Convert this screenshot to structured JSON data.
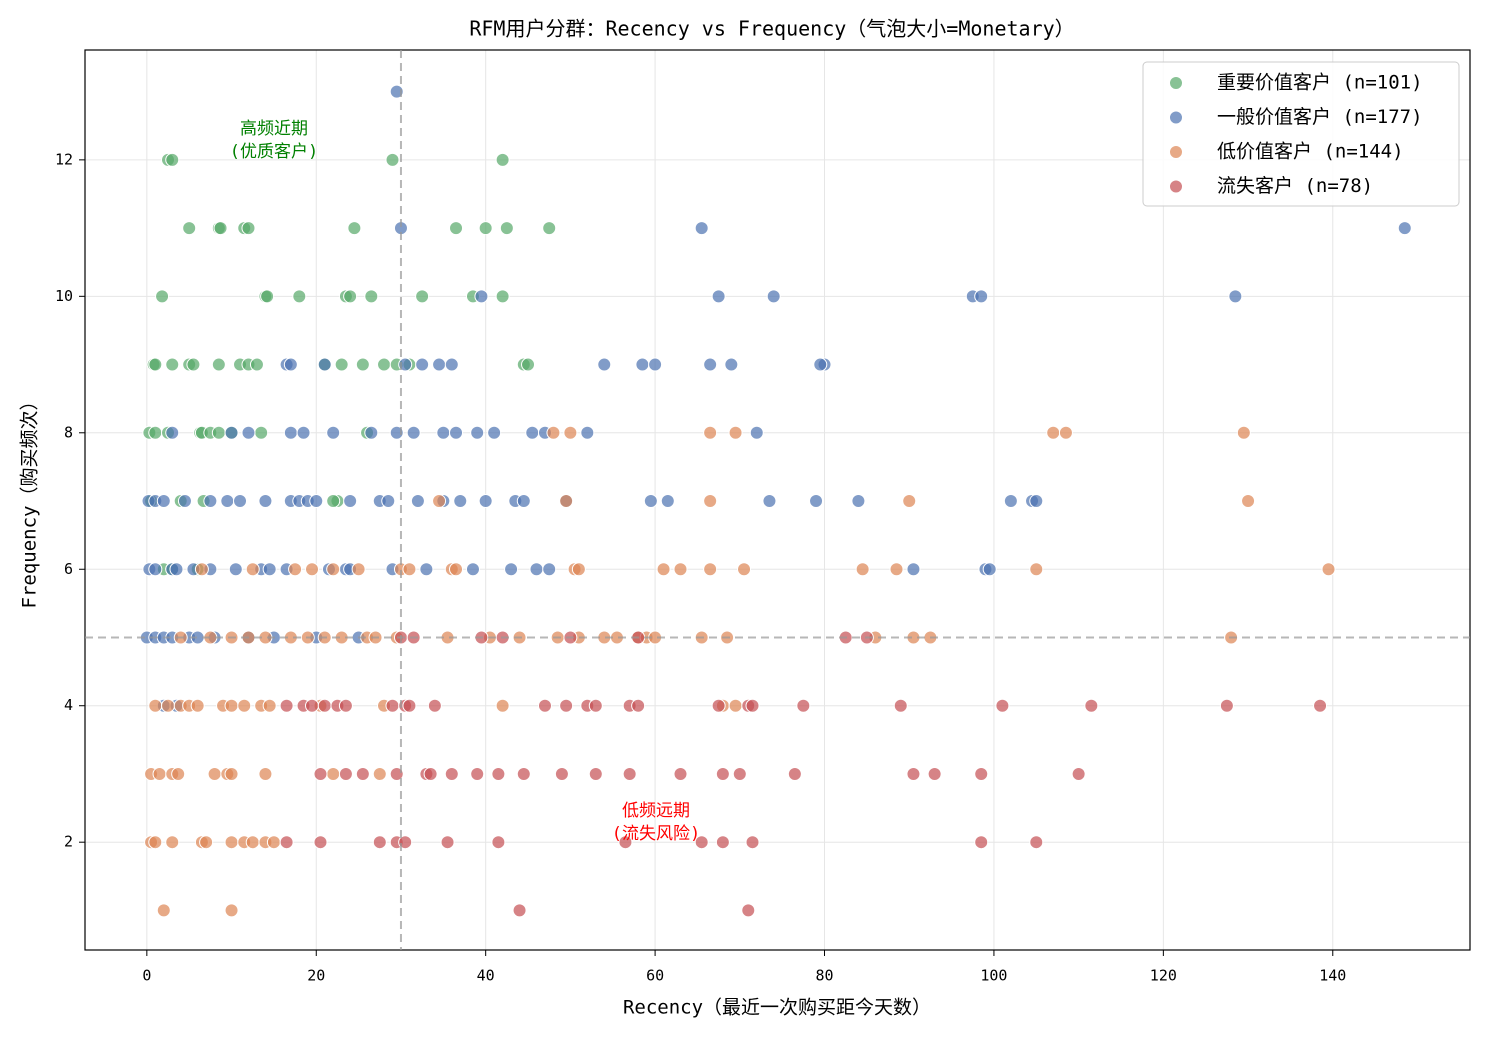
{
  "chart_data": {
    "type": "scatter",
    "title": "RFM用户分群：Recency vs Frequency（气泡大小=Monetary）",
    "x_label": "Recency（最近一次购买距今天数）",
    "y_label": "Frequency（购买频次）",
    "xlim": [
      -7.3,
      156.2
    ],
    "ylim": [
      0.42,
      13.61
    ],
    "xticks": [
      0,
      20,
      40,
      60,
      80,
      100,
      120,
      140
    ],
    "yticks": [
      2,
      4,
      6,
      8,
      10,
      12
    ],
    "grid": true,
    "legend": "upper right",
    "ref_x": 30,
    "ref_y": 5,
    "annotations": [
      {
        "lines": [
          "高频近期",
          "(优质客户)"
        ],
        "color": "#008000"
      },
      {
        "lines": [
          "低频远期",
          "(流失风险)"
        ],
        "color": "#ff0000"
      }
    ],
    "series": [
      {
        "name": "重要价值客户 (n=101)",
        "color": "#55a868",
        "x": [
          2.5,
          3,
          29,
          42,
          5,
          8.5,
          8.7,
          11.5,
          12,
          24.5,
          36.5,
          40,
          42.5,
          47.5,
          1.8,
          14,
          14.2,
          18,
          23.5,
          24,
          26.5,
          32.5,
          38.5,
          42,
          0.8,
          1,
          3,
          5,
          5.5,
          8.5,
          11,
          12,
          13,
          21,
          23,
          25.5,
          28,
          29.5,
          31,
          44.5,
          45,
          0.3,
          1,
          2.5,
          6.3,
          6.5,
          7.5,
          8.5,
          10,
          13.5,
          26,
          0.5,
          4,
          6.7,
          22.5,
          22,
          2,
          3,
          6
        ],
        "values": [
          12,
          12,
          12,
          12,
          11,
          11,
          11,
          11,
          11,
          11,
          11,
          11,
          11,
          11,
          10,
          10,
          10,
          10,
          10,
          10,
          10,
          10,
          10,
          10,
          9,
          9,
          9,
          9,
          9,
          9,
          9,
          9,
          9,
          9,
          9,
          9,
          9,
          9,
          9,
          9,
          9,
          8,
          8,
          8,
          8,
          8,
          8,
          8,
          8,
          8,
          8,
          7,
          7,
          7,
          7,
          7,
          6,
          6,
          6
        ]
      },
      {
        "name": "一般价值客户 (n=177)",
        "color": "#4c72b0",
        "x": [
          29.5,
          30,
          65.5,
          148.5,
          39.5,
          67.5,
          74,
          97.5,
          98.5,
          128.5,
          16.5,
          17,
          21,
          30.5,
          32.5,
          34.5,
          36,
          54,
          58.5,
          60,
          66.5,
          69,
          80,
          79.5,
          3,
          12,
          17,
          18.5,
          22,
          26.5,
          29.5,
          31.5,
          35,
          36.5,
          39,
          41,
          45.5,
          47,
          52,
          72,
          10,
          0.2,
          1,
          2,
          4.5,
          7.5,
          9.5,
          11,
          14,
          17,
          18,
          19,
          20,
          24,
          27.5,
          28.5,
          32,
          35,
          37,
          40,
          43.5,
          44.5,
          49.5,
          59.5,
          61.5,
          73.5,
          79,
          84,
          102,
          104.5,
          105,
          0.3,
          1,
          3,
          3.5,
          5.5,
          7.5,
          10.5,
          13.5,
          14.5,
          16.5,
          21.5,
          23.5,
          24,
          29,
          33,
          38.5,
          43,
          46,
          47.5,
          90.5,
          99,
          99.5,
          0,
          1,
          2,
          3,
          5,
          6,
          8,
          12,
          15,
          20,
          25,
          2,
          3.5
        ],
        "values": [
          13,
          11,
          11,
          11,
          10,
          10,
          10,
          10,
          10,
          10,
          9,
          9,
          9,
          9,
          9,
          9,
          9,
          9,
          9,
          9,
          9,
          9,
          9,
          9,
          8,
          8,
          8,
          8,
          8,
          8,
          8,
          8,
          8,
          8,
          8,
          8,
          8,
          8,
          8,
          8,
          8,
          7,
          7,
          7,
          7,
          7,
          7,
          7,
          7,
          7,
          7,
          7,
          7,
          7,
          7,
          7,
          7,
          7,
          7,
          7,
          7,
          7,
          7,
          7,
          7,
          7,
          7,
          7,
          7,
          7,
          7,
          6,
          6,
          6,
          6,
          6,
          6,
          6,
          6,
          6,
          6,
          6,
          6,
          6,
          6,
          6,
          6,
          6,
          6,
          6,
          6,
          6,
          6,
          5,
          5,
          5,
          5,
          5,
          5,
          5,
          5,
          5,
          5,
          5,
          4,
          4
        ]
      },
      {
        "name": "低价值客户 (n=144)",
        "color": "#dd8452",
        "x": [
          107,
          108.5,
          129.5,
          48,
          50,
          66.5,
          69.5,
          34.5,
          49.5,
          66.5,
          90,
          130,
          6.5,
          12.5,
          17.5,
          19.5,
          22,
          25,
          30,
          31,
          36,
          36.5,
          50.5,
          51,
          61,
          63,
          66.5,
          70.5,
          84.5,
          88.5,
          105,
          139.5,
          4,
          7.5,
          10,
          12,
          14,
          17,
          19,
          21,
          23,
          26,
          27,
          29.5,
          35.5,
          40.5,
          44,
          48.5,
          51,
          54,
          55.5,
          58,
          59,
          60,
          65.5,
          68.5,
          86,
          90.5,
          92.5,
          128,
          1,
          2.5,
          4,
          5,
          6,
          9,
          10,
          11.5,
          13.5,
          14.5,
          20.5,
          28,
          42,
          68,
          69.5,
          0.5,
          1.5,
          3,
          3.7,
          8,
          9.5,
          10,
          14,
          22,
          27.5,
          0.5,
          1,
          3,
          6.5,
          7,
          10,
          11.5,
          12.5,
          14,
          15,
          2,
          10
        ],
        "values": [
          8,
          8,
          8,
          8,
          8,
          8,
          8,
          7,
          7,
          7,
          7,
          7,
          6,
          6,
          6,
          6,
          6,
          6,
          6,
          6,
          6,
          6,
          6,
          6,
          6,
          6,
          6,
          6,
          6,
          6,
          6,
          6,
          5,
          5,
          5,
          5,
          5,
          5,
          5,
          5,
          5,
          5,
          5,
          5,
          5,
          5,
          5,
          5,
          5,
          5,
          5,
          5,
          5,
          5,
          5,
          5,
          5,
          5,
          5,
          5,
          4,
          4,
          4,
          4,
          4,
          4,
          4,
          4,
          4,
          4,
          4,
          4,
          4,
          4,
          4,
          3,
          3,
          3,
          3,
          3,
          3,
          3,
          3,
          3,
          3,
          2,
          2,
          2,
          2,
          2,
          2,
          2,
          2,
          2,
          2,
          1,
          1
        ]
      },
      {
        "name": "流失客户 (n=78)",
        "color": "#c44e52",
        "x": [
          30,
          31.5,
          39.5,
          42,
          50,
          58,
          82.5,
          85,
          16.5,
          18.5,
          19.5,
          21,
          22.5,
          23.5,
          29,
          30.5,
          31,
          34,
          47,
          49.5,
          52,
          53,
          57,
          58,
          67.5,
          71,
          71.5,
          77.5,
          89,
          101,
          111.5,
          127.5,
          138.5,
          20.5,
          23.5,
          25.5,
          29.5,
          33,
          33.5,
          36,
          39,
          41.5,
          44.5,
          49,
          53,
          57,
          63,
          68,
          70,
          76.5,
          90.5,
          93,
          98.5,
          110,
          16.5,
          20.5,
          27.5,
          29.5,
          30.5,
          35.5,
          41.5,
          56.5,
          65.5,
          68,
          71.5,
          98.5,
          105,
          44,
          71
        ],
        "values": [
          5,
          5,
          5,
          5,
          5,
          5,
          5,
          5,
          4,
          4,
          4,
          4,
          4,
          4,
          4,
          4,
          4,
          4,
          4,
          4,
          4,
          4,
          4,
          4,
          4,
          4,
          4,
          4,
          4,
          4,
          4,
          4,
          4,
          3,
          3,
          3,
          3,
          3,
          3,
          3,
          3,
          3,
          3,
          3,
          3,
          3,
          3,
          3,
          3,
          3,
          3,
          3,
          3,
          3,
          2,
          2,
          2,
          2,
          2,
          2,
          2,
          2,
          2,
          2,
          2,
          2,
          2,
          1,
          1
        ]
      }
    ]
  }
}
